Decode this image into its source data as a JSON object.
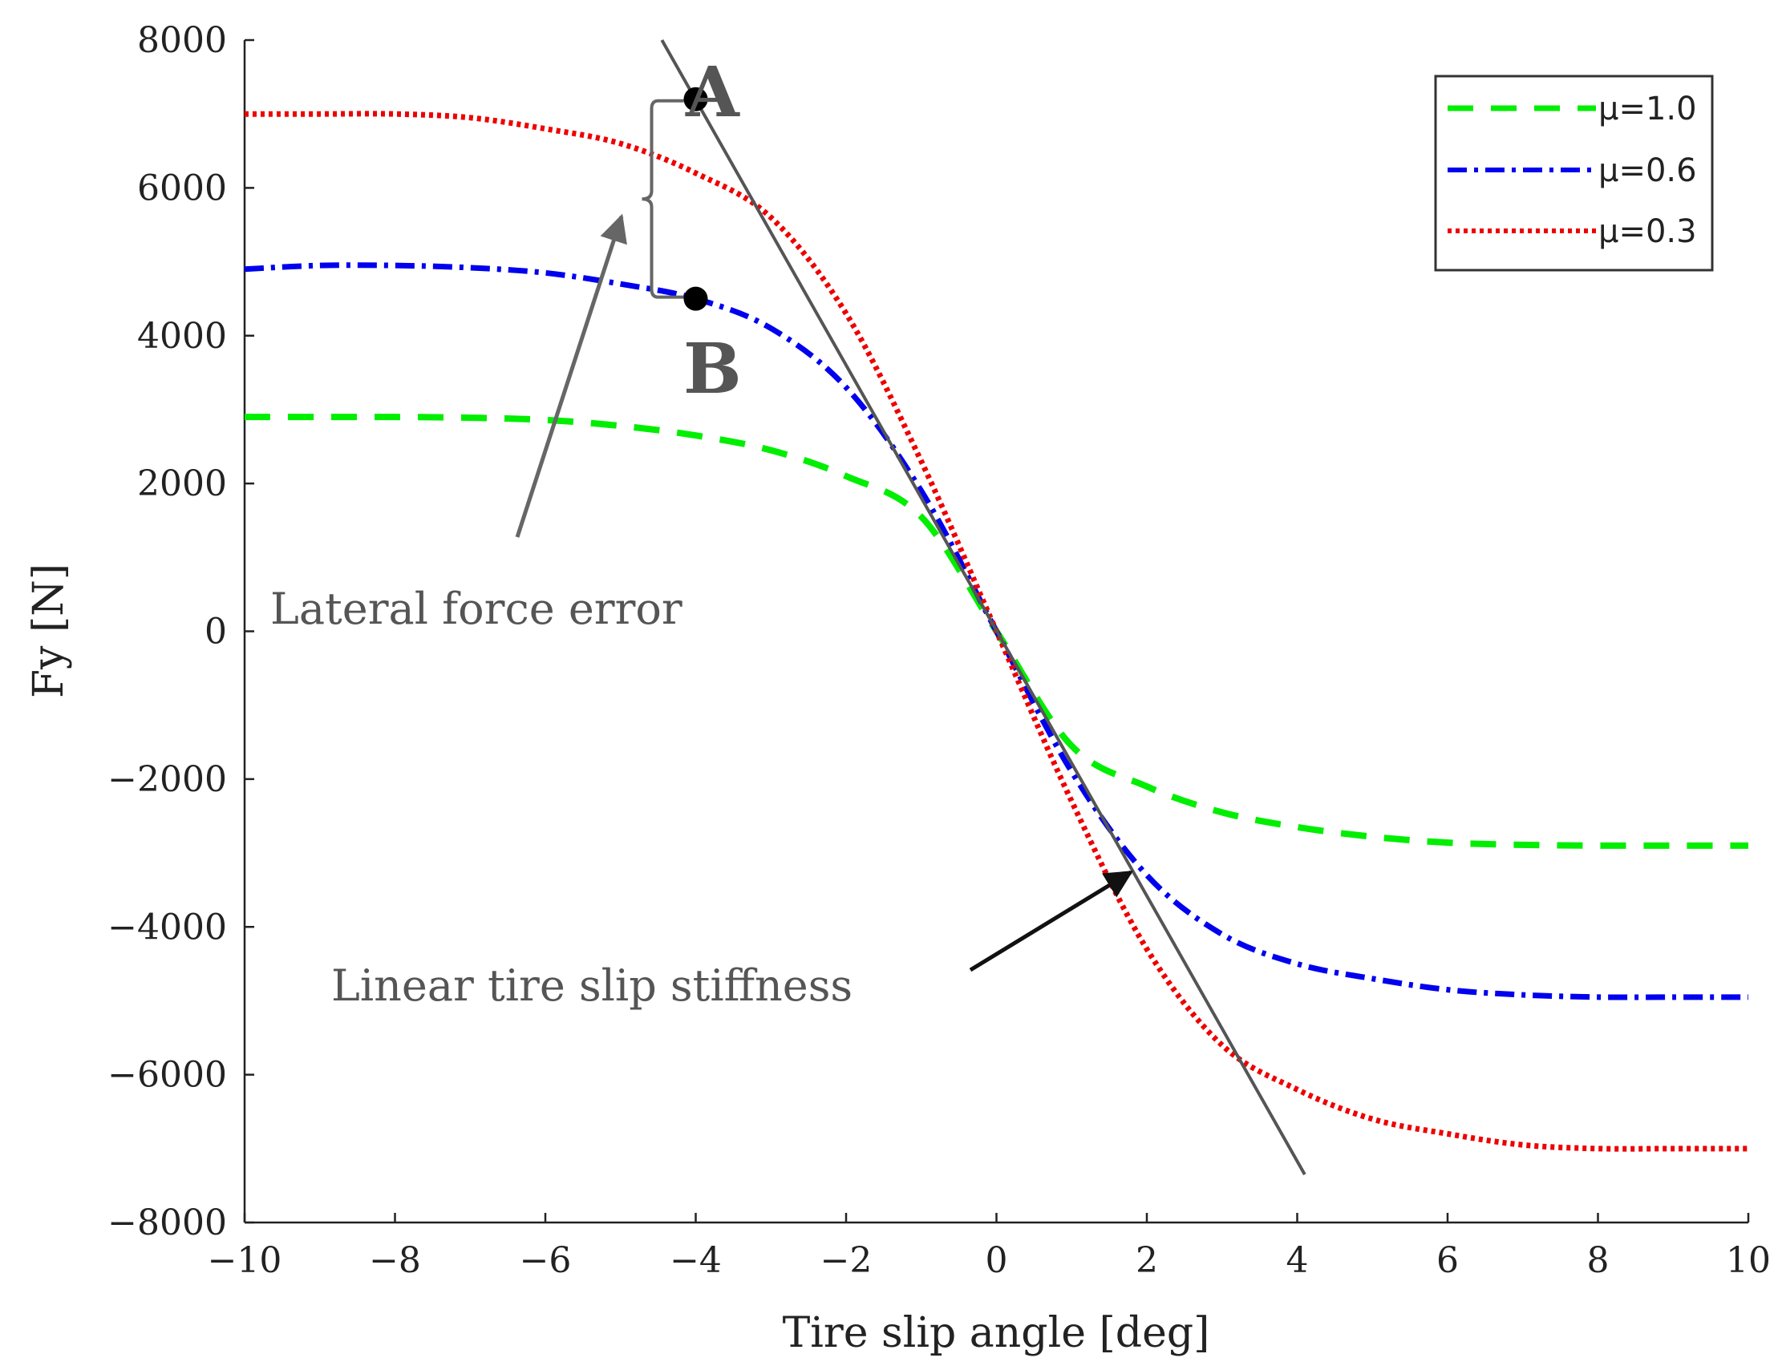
{
  "chart_data": {
    "type": "line",
    "title": "",
    "xlabel": "Tire slip angle [deg]",
    "ylabel": "Fy [N]",
    "xlim": [
      -10,
      10
    ],
    "ylim": [
      -8000,
      8000
    ],
    "xticks": [
      -10,
      -8,
      -6,
      -4,
      -2,
      0,
      2,
      4,
      6,
      8,
      10
    ],
    "yticks": [
      -8000,
      -6000,
      -4000,
      -2000,
      0,
      2000,
      4000,
      6000,
      8000
    ],
    "xtick_labels": [
      "−10",
      "−8",
      "−6",
      "−4",
      "−2",
      "0",
      "2",
      "4",
      "6",
      "8",
      "10"
    ],
    "ytick_labels": [
      "−8000",
      "−6000",
      "−4000",
      "−2000",
      "0",
      "2000",
      "4000",
      "6000",
      "8000"
    ],
    "grid": false,
    "legend_position": "top-right",
    "x": [
      -10,
      -9,
      -8,
      -7,
      -6,
      -5,
      -4,
      -3,
      -2,
      -1,
      0,
      1,
      2,
      3,
      4,
      5,
      6,
      7,
      8,
      9,
      10
    ],
    "series": [
      {
        "name": "μ=1.0",
        "color": "#00ee00",
        "dash": "dashed",
        "values": [
          2900,
          2900,
          2900,
          2890,
          2860,
          2780,
          2650,
          2450,
          2100,
          1550,
          0,
          -1550,
          -2100,
          -2450,
          -2650,
          -2780,
          -2860,
          -2890,
          -2900,
          -2900,
          -2900
        ]
      },
      {
        "name": "μ=0.6",
        "color": "#0000ee",
        "dash": "dashdot",
        "values": [
          4900,
          4950,
          4950,
          4920,
          4850,
          4700,
          4500,
          4100,
          3300,
          1900,
          0,
          -1900,
          -3300,
          -4100,
          -4500,
          -4700,
          -4850,
          -4920,
          -4950,
          -4950,
          -4950
        ]
      },
      {
        "name": "μ=0.3",
        "color": "#ee0000",
        "dash": "dotted",
        "values": [
          7000,
          7000,
          7000,
          6950,
          6800,
          6600,
          6200,
          5600,
          4300,
          2300,
          0,
          -2300,
          -4300,
          -5600,
          -6200,
          -6600,
          -6800,
          -6950,
          -7000,
          -7000,
          -7000
        ]
      }
    ],
    "linear_stiffness_line": {
      "x": [
        -4.45,
        4.1
      ],
      "y": [
        8000,
        -7350
      ],
      "color": "#555555"
    },
    "points": [
      {
        "label": "A",
        "x": -4.0,
        "y": 7200
      },
      {
        "label": "B",
        "x": -4.0,
        "y": 4500
      }
    ],
    "annotations": {
      "lateral_force_error": "Lateral force error",
      "linear_tire_slip_stiffness": "Linear tire slip stiffness"
    }
  }
}
